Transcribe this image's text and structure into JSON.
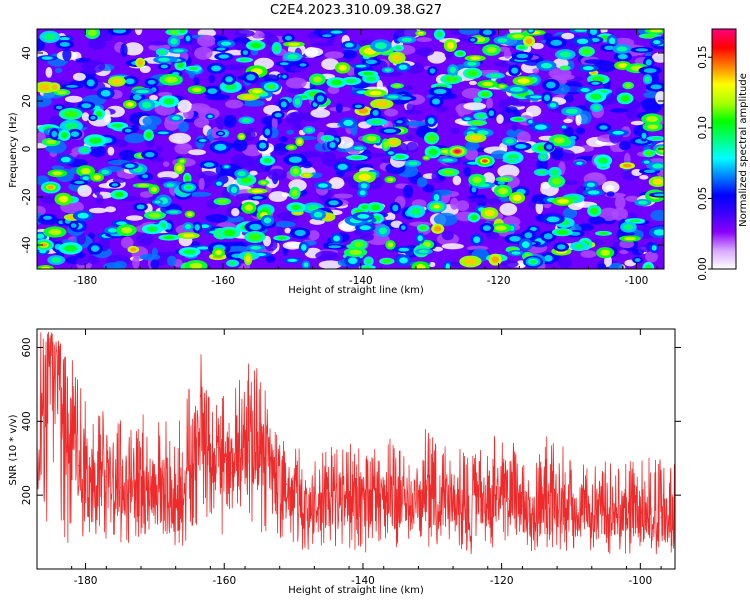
{
  "title": "C2E4.2023.310.09.38.G27",
  "chart_data": [
    {
      "type": "heatmap",
      "xlabel": "Height of straight line (km)",
      "ylabel": "Frequency (Hz)",
      "xlim": [
        -187,
        -96
      ],
      "ylim": [
        -50,
        50
      ],
      "x_ticks": [
        -180,
        -160,
        -140,
        -120,
        -100
      ],
      "y_ticks": [
        -40,
        -20,
        0,
        20,
        40
      ],
      "grid": false,
      "colorbar": {
        "label": "Normalized spectral amplitude",
        "range": [
          0,
          0.17
        ],
        "ticks": [
          "0.00",
          "0.05",
          "0.10",
          "0.15"
        ],
        "colormap": [
          "#ffffff",
          "#d9a8ff",
          "#8a00ff",
          "#3d00ff",
          "#0000ff",
          "#0080ff",
          "#00ffff",
          "#00ff80",
          "#00ff00",
          "#aaff00",
          "#ffff00",
          "#ff8000",
          "#ff0000",
          "#ff0080"
        ]
      },
      "peaks": [
        {
          "x": -126,
          "y": -1,
          "amplitude": 0.17
        },
        {
          "x": -122,
          "y": -5,
          "amplitude": 0.15
        },
        {
          "x": -185,
          "y": -16,
          "amplitude": 0.14
        },
        {
          "x": -186,
          "y": -40,
          "amplitude": 0.14
        },
        {
          "x": -129,
          "y": -24,
          "amplitude": 0.13
        },
        {
          "x": -153,
          "y": 26,
          "amplitude": 0.11
        },
        {
          "x": -165,
          "y": -16,
          "amplitude": 0.1
        },
        {
          "x": -115,
          "y": -47,
          "amplitude": 0.1
        }
      ]
    },
    {
      "type": "line",
      "xlabel": "Height of straight line (km)",
      "ylabel": "SNR (10 * v/v)",
      "xlim": [
        -187,
        -95
      ],
      "ylim": [
        0,
        650
      ],
      "x_ticks": [
        -180,
        -160,
        -140,
        -120,
        -100
      ],
      "y_ticks": [
        200,
        400,
        600
      ],
      "grid": false,
      "series": [
        {
          "color": "#ee2a2a",
          "x": [
            -187,
            -185,
            -183,
            -181,
            -179,
            -177,
            -175,
            -173,
            -171,
            -169,
            -167,
            -165,
            -163,
            -161,
            -159,
            -157,
            -155,
            -153,
            -151,
            -149,
            -147,
            -145,
            -143,
            -141,
            -139,
            -137,
            -135,
            -133,
            -131,
            -129,
            -127,
            -125,
            -123,
            -121,
            -119,
            -117,
            -115,
            -113,
            -111,
            -109,
            -107,
            -105,
            -103,
            -101,
            -99,
            -97,
            -95
          ],
          "y": [
            300,
            560,
            470,
            280,
            230,
            250,
            220,
            200,
            190,
            230,
            170,
            280,
            370,
            330,
            260,
            350,
            330,
            240,
            230,
            180,
            160,
            200,
            190,
            180,
            170,
            200,
            190,
            170,
            160,
            180,
            190,
            160,
            160,
            200,
            190,
            170,
            140,
            200,
            170,
            160,
            150,
            160,
            140,
            160,
            150,
            140,
            140
          ],
          "y_min": [
            120,
            60,
            60,
            80,
            80,
            80,
            70,
            60,
            50,
            60,
            40,
            70,
            80,
            80,
            80,
            90,
            80,
            70,
            60,
            50,
            40,
            50,
            50,
            50,
            40,
            60,
            50,
            40,
            40,
            50,
            60,
            40,
            40,
            60,
            50,
            50,
            40,
            50,
            50,
            40,
            40,
            40,
            40,
            40,
            40,
            40,
            40
          ],
          "y_max": [
            650,
            640,
            600,
            550,
            450,
            420,
            430,
            420,
            440,
            430,
            400,
            500,
            600,
            520,
            450,
            600,
            560,
            410,
            380,
            330,
            310,
            360,
            350,
            340,
            300,
            380,
            350,
            300,
            390,
            340,
            350,
            310,
            330,
            370,
            360,
            320,
            300,
            380,
            330,
            320,
            280,
            300,
            290,
            300,
            310,
            300,
            290
          ]
        }
      ]
    }
  ]
}
